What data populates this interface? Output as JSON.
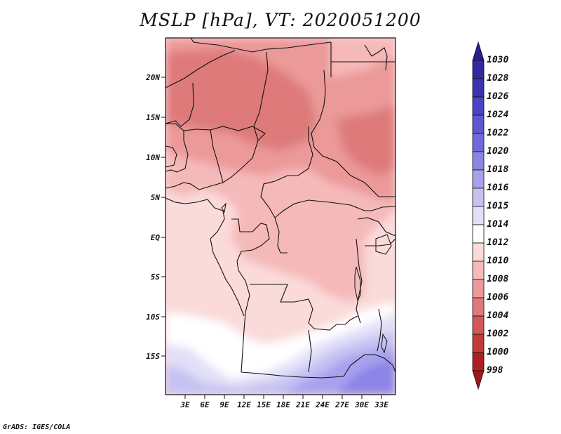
{
  "title": "MSLP [hPa], VT: 2020051200",
  "credit": "GrADS: IGES/COLA",
  "lat_labels": [
    "20N",
    "15N",
    "10N",
    "5N",
    "EQ",
    "5S",
    "10S",
    "15S"
  ],
  "lon_labels": [
    "3E",
    "6E",
    "9E",
    "12E",
    "15E",
    "18E",
    "21E",
    "24E",
    "27E",
    "30E",
    "33E"
  ],
  "colorbar": {
    "labels": [
      "1030",
      "1028",
      "1026",
      "1024",
      "1022",
      "1020",
      "1018",
      "1016",
      "1015",
      "1014",
      "1012",
      "1010",
      "1008",
      "1006",
      "1004",
      "1002",
      "1000",
      "998"
    ],
    "colors": [
      "#2a1e8c",
      "#33289e",
      "#3c33b0",
      "#4b44c4",
      "#5d57d2",
      "#7369dc",
      "#8c84e6",
      "#a8a2ee",
      "#c5c2f3",
      "#e2e0f8",
      "#ffffff",
      "#fbdada",
      "#f5b9b9",
      "#eb9999",
      "#de7a7a",
      "#d25858",
      "#c23a3a",
      "#b02020",
      "#9e1717"
    ]
  },
  "map": {
    "projection": "lat-lon",
    "lon_range": [
      0,
      35
    ],
    "lat_range": [
      -20,
      25
    ]
  }
}
